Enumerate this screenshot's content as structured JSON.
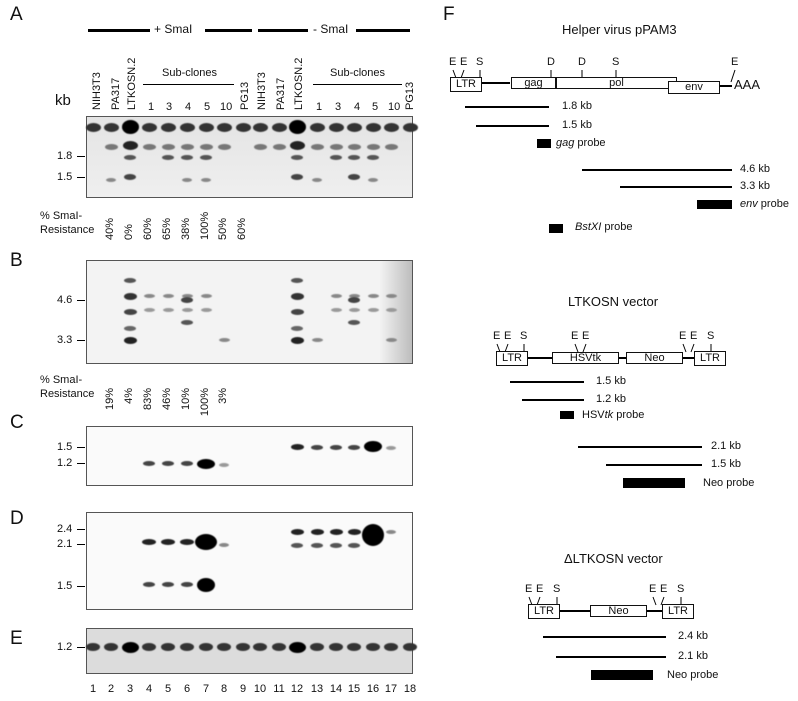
{
  "panels": {
    "a": "A",
    "b": "B",
    "c": "C",
    "d": "D",
    "e": "E",
    "f": "F"
  },
  "groups": {
    "plus": "+ SmaI",
    "minus": "- SmaI"
  },
  "kb_label": "kb",
  "lane_headers": {
    "nih": "NIH3T3",
    "pa": "PA317",
    "ltk": "LTKOSN.2",
    "sub": "Sub-clones",
    "pg": "PG13",
    "n1": "1",
    "n3": "3",
    "n4": "4",
    "n5": "5",
    "n10": "10"
  },
  "blot_a": {
    "markers": [
      "1.8",
      "1.5"
    ],
    "resistance_label": [
      "% SmaI-",
      "Resistance"
    ],
    "resistance": [
      "40%",
      "0%",
      "60%",
      "65%",
      "38%",
      "100%",
      "50%",
      "60%"
    ]
  },
  "blot_b": {
    "markers": [
      "4.6",
      "3.3"
    ],
    "resistance_label": [
      "% SmaI-",
      "Resistance"
    ],
    "resistance": [
      "19%",
      "4%",
      "83%",
      "46%",
      "10%",
      "100%",
      "3%"
    ]
  },
  "blot_c": {
    "markers": [
      "1.5",
      "1.2"
    ]
  },
  "blot_d": {
    "markers": [
      "2.4",
      "2.1",
      "1.5"
    ]
  },
  "blot_e": {
    "markers": [
      "1.2"
    ]
  },
  "lane_numbers": [
    "1",
    "2",
    "3",
    "4",
    "5",
    "6",
    "7",
    "8",
    "9",
    "10",
    "11",
    "12",
    "13",
    "14",
    "15",
    "16",
    "17",
    "18"
  ],
  "helper": {
    "title": "Helper virus pPAM3",
    "sites": [
      "E",
      "E",
      "S",
      "D",
      "D",
      "S",
      "E"
    ],
    "boxes": [
      "LTR",
      "gag",
      "pol",
      "env"
    ],
    "polya": "AAA",
    "frag1": "1.8 kb",
    "frag2": "1.5 kb",
    "probe1": "gag",
    "probe1_suffix": " probe",
    "frag3": "4.6 kb",
    "frag4": "3.3 kb",
    "probe2": "env",
    "probe2_suffix": " probe",
    "probe3": "BstXI",
    "probe3_suffix": " probe"
  },
  "ltkosn": {
    "title": "LTKOSN vector",
    "sites": [
      "E",
      "E",
      "S",
      "E",
      "E",
      "E",
      "E",
      "S"
    ],
    "boxes": [
      "LTR",
      "HSVtk",
      "Neo",
      "LTR"
    ],
    "frag1": "1.5 kb",
    "frag2": "1.2 kb",
    "probe1_pre": "HSV",
    "probe1_it": "tk",
    "probe1_suffix": " probe",
    "frag3": "2.1 kb",
    "frag4": "1.5 kb",
    "probe2": "Neo probe"
  },
  "dltkosn": {
    "title": "ΔLTKOSN vector",
    "sites": [
      "E",
      "E",
      "S",
      "E",
      "E",
      "S"
    ],
    "boxes": [
      "LTR",
      "Neo",
      "LTR"
    ],
    "frag1": "2.4 kb",
    "frag2": "2.1 kb",
    "probe": "Neo probe"
  }
}
